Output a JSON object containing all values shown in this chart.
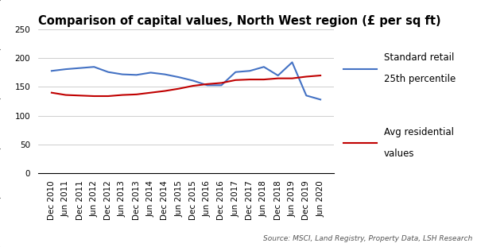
{
  "title": "Comparison of capital values, North West region (£ per sq ft)",
  "labels": [
    "Dec 2010",
    "Jun 2011",
    "Dec 2011",
    "Jun 2012",
    "Dec 2012",
    "Jun 2013",
    "Dec 2013",
    "Jun 2014",
    "Dec 2014",
    "Jun 2015",
    "Dec 2015",
    "Jun 2016",
    "Dec 2016",
    "Jun 2017",
    "Dec 2017",
    "Jun 2018",
    "Dec 2018",
    "Jun 2019",
    "Dec 2019",
    "Jun 2020"
  ],
  "retail": [
    178,
    181,
    183,
    185,
    176,
    172,
    171,
    175,
    172,
    167,
    161,
    153,
    153,
    176,
    178,
    185,
    170,
    193,
    135,
    128
  ],
  "residential": [
    140,
    136,
    135,
    134,
    134,
    136,
    137,
    140,
    143,
    147,
    152,
    155,
    157,
    162,
    163,
    163,
    165,
    165,
    168,
    170
  ],
  "retail_color": "#4472C4",
  "residential_color": "#C00000",
  "retail_label_line1": "Standard retail",
  "retail_label_line2": "25th percentile",
  "residential_label_line1": "Avg residential",
  "residential_label_line2": "values",
  "source_text": "Source: MSCI, Land Registry, Property Data, LSH Research",
  "ylim": [
    0,
    250
  ],
  "yticks": [
    0,
    50,
    100,
    150,
    200,
    250
  ],
  "bg_color": "#FFFFFF",
  "grid_color": "#BBBBBB",
  "title_fontsize": 10.5,
  "tick_fontsize": 7.5,
  "legend_fontsize": 8.5,
  "source_fontsize": 6.5
}
